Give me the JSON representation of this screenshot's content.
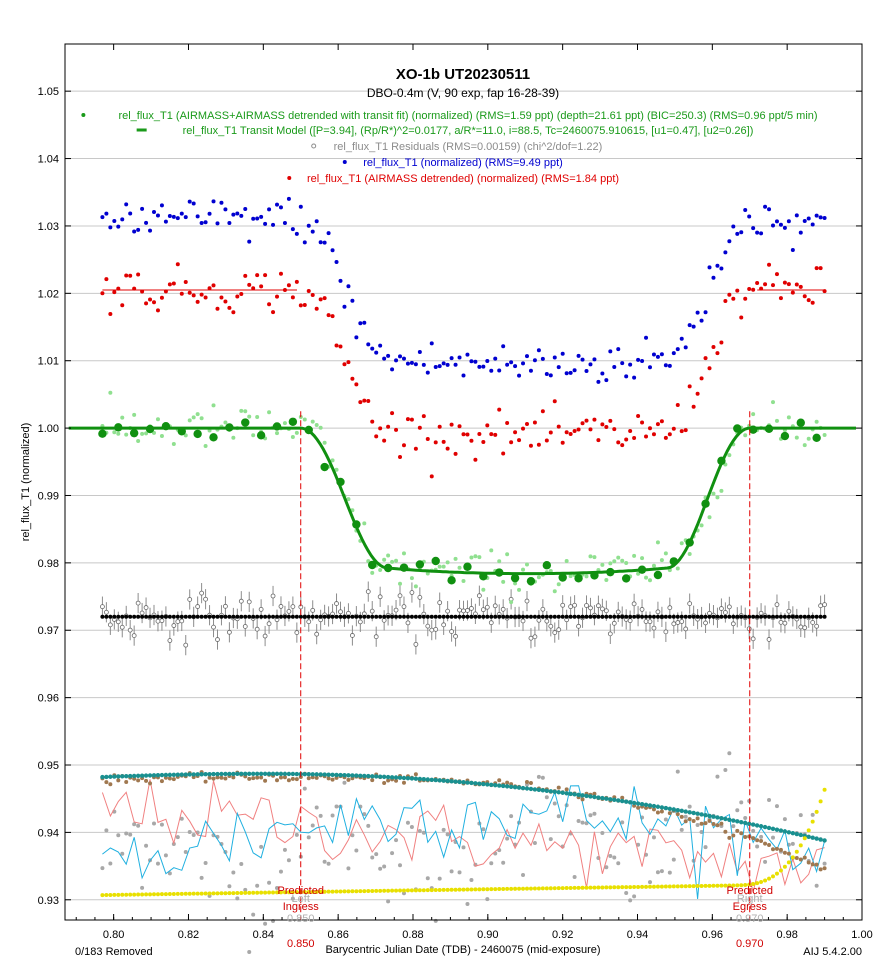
{
  "chart_data": {
    "type": "scatter",
    "title": "XO-1b UT20230511",
    "subtitle": "DBO-0.4m (V, 90 exp, fap 16-28-39)",
    "xlabel": "Barycentric Julian Date (TDB) - 2460075 (mid-exposure)",
    "ylabel": "rel_flux_T1 (normalized)",
    "xlim": [
      0.787,
      1.0
    ],
    "ylim": [
      0.927,
      1.057
    ],
    "x_ticks": [
      "0.80",
      "0.82",
      "0.84",
      "0.86",
      "0.88",
      "0.90",
      "0.92",
      "0.94",
      "0.96",
      "0.98",
      "1.00"
    ],
    "y_ticks": [
      "0.93",
      "0.94",
      "0.95",
      "0.96",
      "0.97",
      "0.98",
      "0.99",
      "1.00",
      "1.01",
      "1.02",
      "1.03",
      "1.04",
      "1.05"
    ],
    "grid": true,
    "legend": [
      {
        "text": "rel_flux_T1 (AIRMASS+AIRMASS detrended with transit fit) (normalized) (RMS=1.59 ppt) (depth=21.61 ppt) (BIC=250.3) (RMS=0.96 ppt/5 min)",
        "color": "#1a9a1a",
        "marker": "dot"
      },
      {
        "text": "rel_flux_T1 Transit Model ([P=3.94], (Rp/R*)^2=0.0177, a/R*=11.0, i=88.5, Tc=2460075.910615, [u1=0.47], [u2=0.26])",
        "color": "#1a9a1a",
        "marker": "line"
      },
      {
        "text": "rel_flux_T1 Residuals (RMS=0.00159) (chi^2/dof=1.22)",
        "color": "#8c8c8c",
        "marker": "circle"
      },
      {
        "text": "rel_flux_T1 (normalized) (RMS=9.49 ppt)",
        "color": "#0000d0",
        "marker": "dot"
      },
      {
        "text": "rel_flux_T1 (AIRMASS detrended) (normalized) (RMS=1.84 ppt)",
        "color": "#e00000",
        "marker": "dot"
      }
    ],
    "model": {
      "tc": 0.910615,
      "depth": 0.0216,
      "t_ingress_start": 0.85,
      "t_full_start": 0.873,
      "t_full_end": 0.948,
      "t_egress_end": 0.97,
      "baseline": 1.0
    },
    "series": [
      {
        "name": "rel_flux_T1 (normalized) (RMS=9.49 ppt)",
        "color": "#0000d0",
        "offset": 1.031,
        "x_range": [
          0.797,
          0.99
        ],
        "n": 183
      },
      {
        "name": "rel_flux_T1 (AIRMASS detrended) (normalized) (RMS=1.84 ppt)",
        "color": "#e00000",
        "offset": 1.0205,
        "x_range": [
          0.797,
          0.99
        ],
        "n": 183
      },
      {
        "name": "rel_flux_T1 (AIRMASS+AIRMASS detrended with transit fit) (normalized)",
        "color": "#1a9a1a",
        "offset": 1.0,
        "x_range": [
          0.797,
          0.99
        ],
        "n": 183
      },
      {
        "name": "rel_flux_T1 Residuals (RMS=0.00159) (chi^2/dof=1.22)",
        "color": "#8c8c8c",
        "offset": 0.972,
        "x_range": [
          0.797,
          0.99
        ],
        "n": 183
      }
    ],
    "markers": [
      {
        "x": 0.85,
        "label": [
          "Predicted",
          "Ingress"
        ],
        "ghost": "Left",
        "tick": "0.850"
      },
      {
        "x": 0.97,
        "label": [
          "Predicted",
          "Egress"
        ],
        "ghost": "Right",
        "tick": "0.970"
      }
    ],
    "footer_left": "0/183 Removed",
    "footer_right": "AIJ 5.4.2.00"
  }
}
